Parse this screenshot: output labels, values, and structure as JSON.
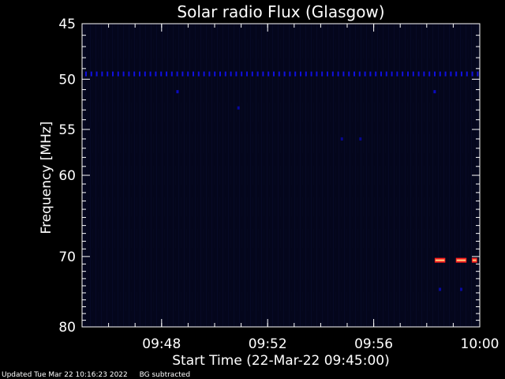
{
  "chart_data": {
    "type": "heatmap",
    "title": "Solar radio Flux (Glasgow)",
    "xlabel": "Start Time (22-Mar-22 09:45:00)",
    "ylabel": "Frequency [MHz]",
    "xlim": [
      "09:45",
      "10:00"
    ],
    "x_ticks": [
      "09:48",
      "09:52",
      "09:56",
      "10:00"
    ],
    "ylim": [
      45,
      80
    ],
    "y_scale": "log",
    "y_ticks": [
      45,
      50,
      55,
      60,
      70,
      80
    ],
    "background_color": "#04061c",
    "features": [
      {
        "kind": "band",
        "freq_mhz": 49.5,
        "t_start": "09:45",
        "t_end": "10:00",
        "color": "#1010e0"
      },
      {
        "kind": "spot",
        "freq_mhz": 51.2,
        "t": "09:48.6",
        "color": "#0a0ac0"
      },
      {
        "kind": "spot",
        "freq_mhz": 51.2,
        "t": "09:58.3",
        "color": "#0a0ac0"
      },
      {
        "kind": "spot",
        "freq_mhz": 52.8,
        "t": "09:50.9",
        "color": "#0808a0"
      },
      {
        "kind": "spot",
        "freq_mhz": 56.0,
        "t": "09:54.8",
        "color": "#080890"
      },
      {
        "kind": "spot",
        "freq_mhz": 56.0,
        "t": "09:55.5",
        "color": "#080890"
      },
      {
        "kind": "burst",
        "freq_mhz": 70.5,
        "t_start": "09:58.3",
        "t_end": "09:58.7",
        "color": "#ff2020"
      },
      {
        "kind": "burst",
        "freq_mhz": 70.5,
        "t_start": "09:59.1",
        "t_end": "09:59.5",
        "color": "#ff2020"
      },
      {
        "kind": "burst",
        "freq_mhz": 70.5,
        "t_start": "09:59.7",
        "t_end": "09:59.9",
        "color": "#ff2020"
      },
      {
        "kind": "spot",
        "freq_mhz": 74.5,
        "t": "09:58.5",
        "color": "#0a0aa0"
      },
      {
        "kind": "spot",
        "freq_mhz": 74.5,
        "t": "09:59.3",
        "color": "#0a0aa0"
      }
    ]
  },
  "footer": {
    "updated": "Updated Tue Mar 22 10:16:23 2022",
    "note": "BG subtracted"
  }
}
